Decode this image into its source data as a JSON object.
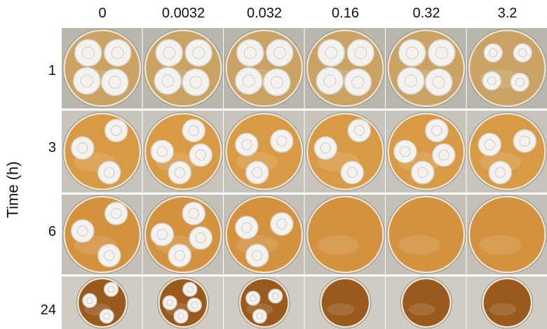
{
  "columns": [
    "0",
    "0.0032",
    "0.032",
    "0.16",
    "0.32",
    "3.2"
  ],
  "rows": [
    "1",
    "3",
    "6",
    "24"
  ],
  "y_axis_label": "Time (h)",
  "colony_growth": [
    [
      true,
      true,
      true,
      true,
      true,
      true
    ],
    [
      true,
      true,
      true,
      true,
      true,
      true
    ],
    [
      true,
      true,
      true,
      false,
      false,
      false
    ],
    [
      true,
      true,
      true,
      false,
      false,
      false
    ]
  ],
  "medium_colors": [
    "#c9a264",
    "#d99a45",
    "#d4913e",
    "#9a5a1e"
  ],
  "background_colors": [
    "#b9b6ae",
    "#c8c4bc",
    "#c4c0b8",
    "#d0ccc4"
  ]
}
